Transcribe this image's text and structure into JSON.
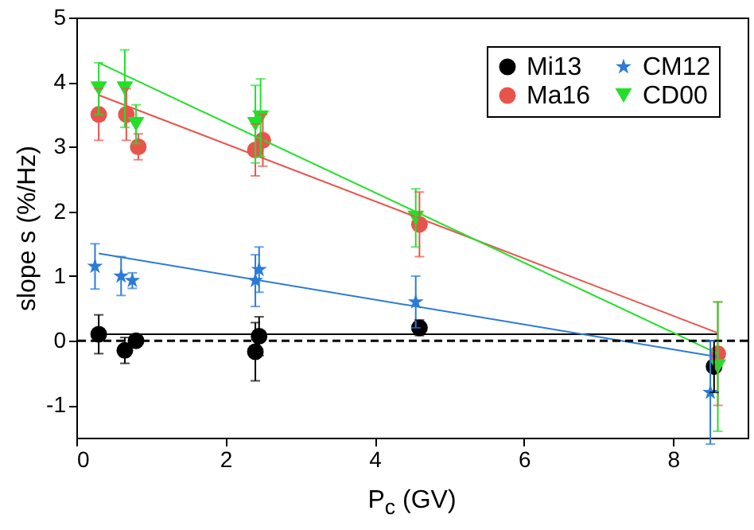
{
  "chart_data": {
    "type": "scatter",
    "xlabel": "P$_{c}$ (GV)",
    "ylabel": "slope s (%/Hz)",
    "xlim": [
      0,
      9
    ],
    "xticks": [
      0,
      2,
      4,
      6,
      8
    ],
    "ylim": [
      -1.5,
      5
    ],
    "yticks": [
      -1,
      0,
      1,
      2,
      3,
      4,
      5
    ],
    "grid": false,
    "legend": "top right",
    "series": [
      {
        "name": "Mi13",
        "color": "#000000",
        "marker": "circle",
        "x": [
          0.3,
          0.65,
          0.8,
          2.4,
          2.45,
          4.6,
          8.55
        ],
        "values": [
          0.1,
          -0.15,
          0.0,
          -0.17,
          0.07,
          0.2,
          -0.4
        ],
        "errors": [
          0.3,
          0.2,
          0.1,
          0.45,
          0.3,
          0.12,
          0.4
        ]
      },
      {
        "name": "Ma16",
        "color": "#e8544c",
        "marker": "circle",
        "x": [
          0.3,
          0.67,
          0.83,
          2.4,
          2.5,
          4.6,
          8.6
        ],
        "values": [
          3.5,
          3.5,
          3.0,
          2.95,
          3.1,
          1.8,
          -0.2
        ],
        "errors": [
          0.4,
          0.4,
          0.2,
          0.4,
          0.4,
          0.5,
          0.8
        ]
      },
      {
        "name": "CM12",
        "color": "#2b7bd6",
        "marker": "star",
        "x": [
          0.25,
          0.6,
          0.75,
          2.4,
          2.45,
          4.55,
          8.5
        ],
        "values": [
          1.15,
          1.0,
          0.93,
          0.93,
          1.1,
          0.6,
          -0.8
        ],
        "errors": [
          0.35,
          0.3,
          0.12,
          0.4,
          0.35,
          0.4,
          0.8
        ]
      },
      {
        "name": "CD00",
        "color": "#22e02a",
        "marker": "triangle",
        "x": [
          0.3,
          0.65,
          0.8,
          2.4,
          2.47,
          4.55,
          8.6
        ],
        "values": [
          3.9,
          3.9,
          3.35,
          3.35,
          3.45,
          1.9,
          -0.4
        ],
        "errors": [
          0.4,
          0.6,
          0.3,
          0.6,
          0.6,
          0.45,
          1.0
        ]
      },
      {
        "type": "line",
        "color": "#000000",
        "x": [
          0.3,
          8.6
        ],
        "values": [
          0.1,
          0.1
        ]
      },
      {
        "type": "line",
        "color": "#e8544c",
        "x": [
          0.3,
          8.6
        ],
        "values": [
          3.8,
          0.12
        ]
      },
      {
        "type": "line",
        "color": "#2b7bd6",
        "x": [
          0.3,
          8.6
        ],
        "values": [
          1.35,
          -0.25
        ]
      },
      {
        "type": "line",
        "color": "#22e02a",
        "x": [
          0.3,
          8.6
        ],
        "values": [
          4.3,
          -0.2
        ]
      }
    ],
    "ref_lines": [
      {
        "axis": "y",
        "value": 0,
        "color": "#000000",
        "line_style": "dashed"
      }
    ]
  }
}
